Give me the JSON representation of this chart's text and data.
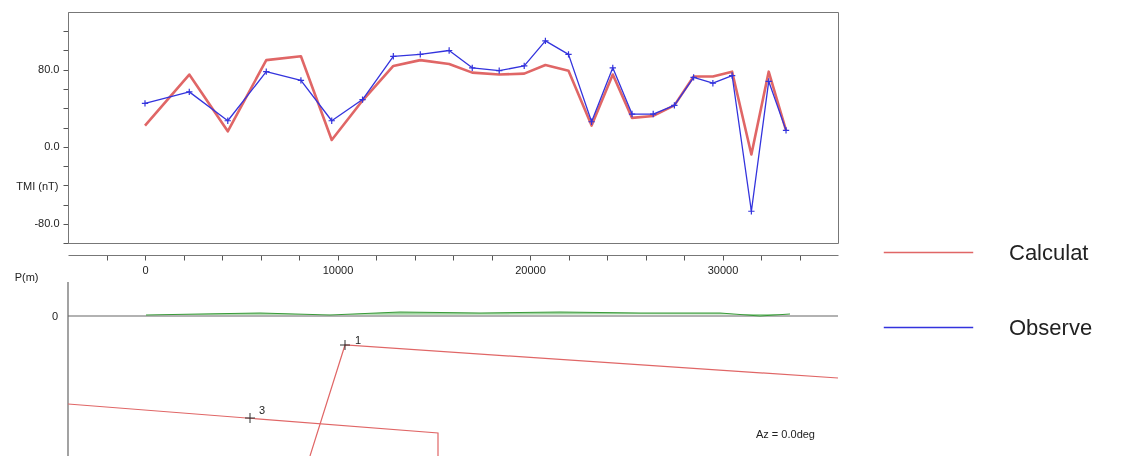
{
  "chart_data": [
    {
      "type": "line",
      "xlabel": "P(m)",
      "ylabel": "TMI (nT)",
      "xlim": [
        -4000,
        36000
      ],
      "ylim": [
        -100,
        140
      ],
      "xticks": [
        {
          "value": -2000,
          "label": null
        },
        0,
        {
          "value": 2000,
          "label": null
        },
        {
          "value": 4000,
          "label": null
        },
        {
          "value": 6000,
          "label": null
        },
        {
          "value": 8000,
          "label": null
        },
        10000,
        {
          "value": 12000,
          "label": null
        },
        {
          "value": 14000,
          "label": null
        },
        {
          "value": 16000,
          "label": null
        },
        {
          "value": 18000,
          "label": null
        },
        20000,
        {
          "value": 22000,
          "label": null
        },
        {
          "value": 24000,
          "label": null
        },
        {
          "value": 26000,
          "label": null
        },
        {
          "value": 28000,
          "label": null
        },
        30000,
        {
          "value": 32000,
          "label": null
        },
        {
          "value": 34000,
          "label": null
        }
      ],
      "yticks": [
        {
          "value": -100,
          "label": null
        },
        {
          "value": -80,
          "label": "-80.0"
        },
        {
          "value": -60,
          "label": null
        },
        {
          "value": -40,
          "label": null
        },
        {
          "value": -20,
          "label": null
        },
        {
          "value": 0,
          "label": "0.0"
        },
        {
          "value": 20,
          "label": null
        },
        {
          "value": 40,
          "label": null
        },
        {
          "value": 60,
          "label": null
        },
        {
          "value": 80,
          "label": "80.0"
        },
        {
          "value": 100,
          "label": null
        },
        {
          "value": 120,
          "label": null
        }
      ],
      "grid": false,
      "legend": "right",
      "x": [
        0,
        2300,
        4300,
        6300,
        8100,
        9700,
        11300,
        12900,
        14300,
        15800,
        17000,
        18400,
        19700,
        20800,
        22000,
        23200,
        24300,
        25300,
        26400,
        27500,
        28500,
        29500,
        30500,
        31500,
        32400,
        33300
      ],
      "series": [
        {
          "name": "Calculat",
          "color": "#e06666",
          "marker": "none",
          "values": [
            22,
            75,
            16,
            90,
            94,
            7,
            48,
            84,
            90,
            86,
            77,
            75,
            76,
            85,
            79,
            22,
            75,
            30,
            32,
            43,
            73,
            73,
            78,
            -8,
            78,
            17
          ]
        },
        {
          "name": "Observe",
          "color": "#3333dd",
          "marker": "cross",
          "values": [
            45,
            57,
            27,
            78,
            69,
            27,
            49,
            94,
            96,
            100,
            82,
            79,
            84,
            110,
            96,
            26,
            82,
            34,
            34,
            43,
            72,
            66,
            74,
            -67,
            68,
            17
          ]
        }
      ]
    },
    {
      "type": "other",
      "annotations": [
        "0",
        "1",
        "3",
        "Az = 0.0deg"
      ]
    }
  ]
}
